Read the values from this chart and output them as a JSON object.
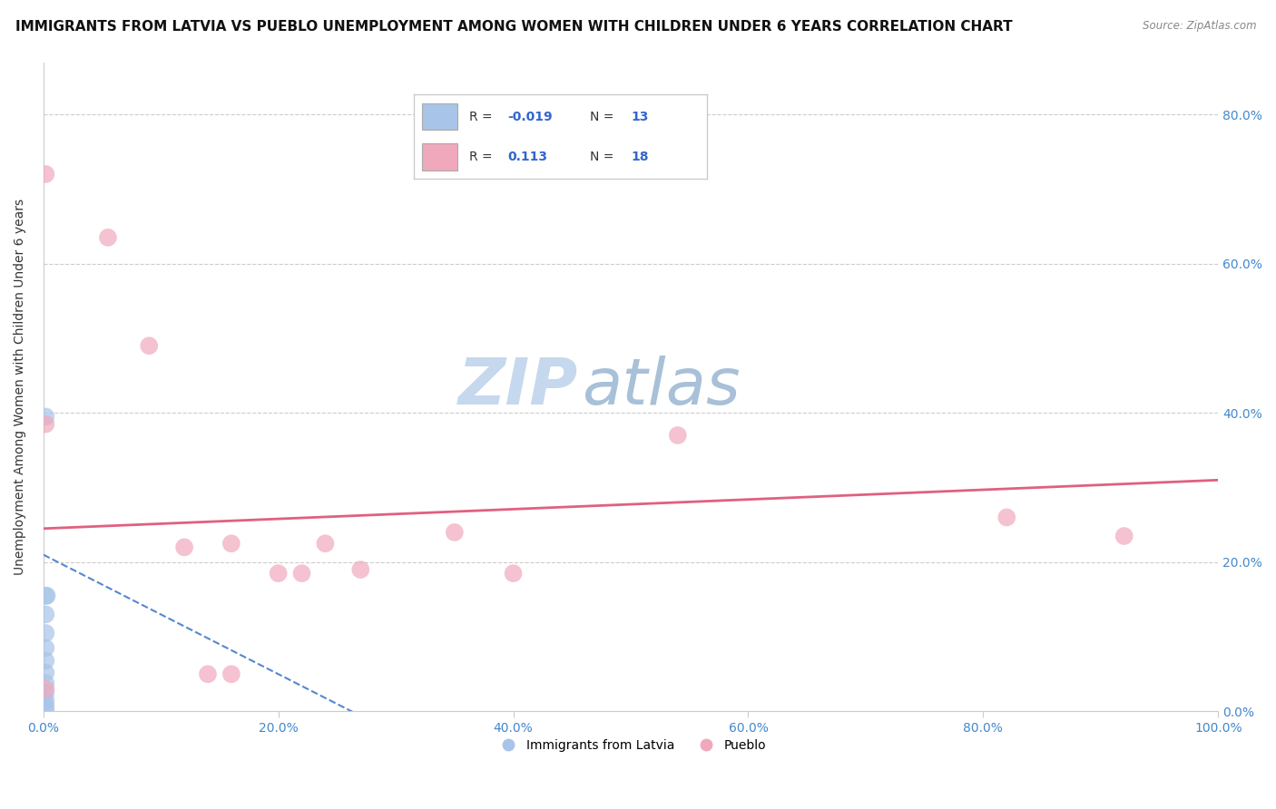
{
  "title": "IMMIGRANTS FROM LATVIA VS PUEBLO UNEMPLOYMENT AMONG WOMEN WITH CHILDREN UNDER 6 YEARS CORRELATION CHART",
  "source": "Source: ZipAtlas.com",
  "ylabel": "Unemployment Among Women with Children Under 6 years",
  "legend_label1": "Immigrants from Latvia",
  "legend_label2": "Pueblo",
  "r1": -0.019,
  "n1": 13,
  "r2": 0.113,
  "n2": 18,
  "blue_color": "#a8c4e8",
  "pink_color": "#f0a8bc",
  "blue_line_color": "#5588cc",
  "pink_line_color": "#e06080",
  "blue_scatter": [
    [
      0.002,
      0.395
    ],
    [
      0.002,
      0.155
    ],
    [
      0.002,
      0.13
    ],
    [
      0.002,
      0.105
    ],
    [
      0.002,
      0.085
    ],
    [
      0.002,
      0.068
    ],
    [
      0.002,
      0.052
    ],
    [
      0.002,
      0.038
    ],
    [
      0.002,
      0.025
    ],
    [
      0.002,
      0.015
    ],
    [
      0.002,
      0.008
    ],
    [
      0.002,
      0.003
    ],
    [
      0.003,
      0.155
    ]
  ],
  "pink_scatter": [
    [
      0.002,
      0.72
    ],
    [
      0.055,
      0.635
    ],
    [
      0.002,
      0.385
    ],
    [
      0.09,
      0.49
    ],
    [
      0.12,
      0.22
    ],
    [
      0.16,
      0.225
    ],
    [
      0.2,
      0.185
    ],
    [
      0.22,
      0.185
    ],
    [
      0.24,
      0.225
    ],
    [
      0.27,
      0.19
    ],
    [
      0.35,
      0.24
    ],
    [
      0.4,
      0.185
    ],
    [
      0.14,
      0.05
    ],
    [
      0.16,
      0.05
    ],
    [
      0.54,
      0.37
    ],
    [
      0.82,
      0.26
    ],
    [
      0.92,
      0.235
    ],
    [
      0.002,
      0.03
    ]
  ],
  "blue_line": [
    [
      0.0,
      0.21
    ],
    [
      0.95,
      -0.55
    ]
  ],
  "pink_line": [
    [
      0.0,
      0.245
    ],
    [
      1.0,
      0.31
    ]
  ],
  "xlim": [
    0.0,
    1.0
  ],
  "ylim": [
    0.0,
    0.87
  ],
  "yticks": [
    0.0,
    0.2,
    0.4,
    0.6,
    0.8
  ],
  "xticks": [
    0.0,
    0.2,
    0.4,
    0.6,
    0.8,
    1.0
  ],
  "grid_color": "#cccccc",
  "background_color": "#ffffff",
  "title_fontsize": 11,
  "watermark_color_zip": "#c5d8ee",
  "watermark_color_atlas": "#a8c0d8",
  "watermark_fontsize": 52
}
